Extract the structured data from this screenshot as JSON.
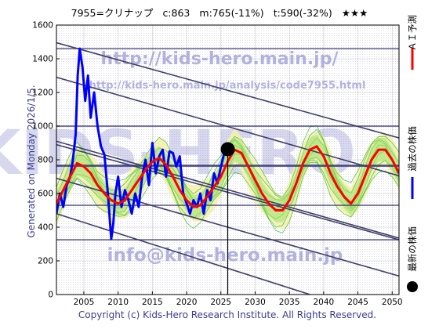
{
  "header": {
    "code_name": "7955=クリナップ",
    "current": "c:863",
    "median": "m:765(-11%)",
    "target": "t:590(-32%)",
    "stars": "★★★"
  },
  "side_note": "Generated on Monday 2026/1/5.",
  "watermarks": {
    "url_main": "http://kids-hero.main.jp/",
    "url_analysis": "http://kids-hero.main.jp/analysis/code7955.html",
    "email": "info@kids-hero.main.jp",
    "logo": "KIDS-HERO"
  },
  "copyright": "Copyright (c) Kids-Hero Research Institute. All Rights Reserved.",
  "legend": [
    {
      "label": "ＡＩ予測",
      "marker": "line",
      "color": "#ff0000"
    },
    {
      "label": "過去の株価",
      "marker": "line",
      "color": "#0000ff"
    },
    {
      "label": "最新の株価",
      "marker": "dot",
      "color": "#000000"
    }
  ],
  "chart_data": {
    "type": "line",
    "xlim": [
      2001,
      2051
    ],
    "ylim": [
      0,
      1600
    ],
    "x_ticks": [
      2005,
      2010,
      2015,
      2020,
      2025,
      2030,
      2035,
      2040,
      2045,
      2050
    ],
    "y_ticks": [
      0,
      200,
      400,
      600,
      800,
      1000,
      1200,
      1400,
      1600
    ],
    "horizontal_lines": [
      325,
      530,
      765,
      1000,
      1460
    ],
    "current_point": {
      "x": 2026.0,
      "y": 863
    },
    "current_marker_x": 2026.0,
    "trend_lines": [
      {
        "from": [
          2001,
          1495
        ],
        "to": [
          2051,
          930
        ]
      },
      {
        "from": [
          2001,
          1290
        ],
        "to": [
          2051,
          705
        ]
      },
      {
        "from": [
          2001,
          910
        ],
        "to": [
          2051,
          335
        ]
      },
      {
        "from": [
          2001,
          890
        ],
        "to": [
          2051,
          325
        ]
      },
      {
        "from": [
          2001,
          690
        ],
        "to": [
          2051,
          110
        ]
      },
      {
        "from": [
          2001,
          480
        ],
        "to": [
          2038,
          0
        ]
      }
    ],
    "series": [
      {
        "name": "過去の株価",
        "color": "#0000ff",
        "x": [
          2001.0,
          2001.5,
          2002.0,
          2002.5,
          2003.0,
          2003.4,
          2003.8,
          2004.1,
          2004.4,
          2004.8,
          2005.2,
          2005.6,
          2006.0,
          2006.5,
          2007.0,
          2007.5,
          2008.0,
          2008.5,
          2009.0,
          2009.3,
          2009.6,
          2010.0,
          2010.5,
          2011.0,
          2011.5,
          2012.0,
          2012.5,
          2013.0,
          2013.5,
          2014.0,
          2014.5,
          2015.0,
          2015.5,
          2016.0,
          2016.5,
          2017.0,
          2017.5,
          2018.0,
          2018.5,
          2019.0,
          2019.5,
          2020.0,
          2020.5,
          2021.0,
          2021.5,
          2022.0,
          2022.5,
          2023.0,
          2023.5,
          2024.0,
          2024.5,
          2025.0,
          2025.5,
          2026.0
        ],
        "y": [
          480,
          600,
          520,
          650,
          700,
          800,
          950,
          1300,
          1460,
          1350,
          1150,
          1300,
          1050,
          1200,
          1000,
          880,
          830,
          600,
          330,
          420,
          600,
          700,
          520,
          620,
          560,
          480,
          600,
          520,
          700,
          800,
          650,
          900,
          720,
          820,
          860,
          700,
          850,
          840,
          760,
          820,
          600,
          540,
          480,
          560,
          520,
          600,
          480,
          620,
          560,
          720,
          660,
          760,
          840,
          863
        ]
      },
      {
        "name": "ＡＩ予測",
        "color": "#ff0000",
        "x": [
          2001.0,
          2002.0,
          2003.0,
          2004.0,
          2005.0,
          2006.0,
          2007.0,
          2008.0,
          2009.0,
          2010.0,
          2011.0,
          2012.0,
          2013.0,
          2014.0,
          2015.0,
          2016.0,
          2017.0,
          2018.0,
          2019.0,
          2020.0,
          2021.0,
          2022.0,
          2023.0,
          2024.0,
          2025.0,
          2026.0,
          2027.0,
          2028.0,
          2029.0,
          2030.0,
          2031.0,
          2032.0,
          2033.0,
          2034.0,
          2035.0,
          2036.0,
          2037.0,
          2038.0,
          2039.0,
          2040.0,
          2041.0,
          2042.0,
          2043.0,
          2044.0,
          2045.0,
          2046.0,
          2047.0,
          2048.0,
          2049.0,
          2050.0,
          2051.0
        ],
        "y": [
          540,
          620,
          700,
          780,
          760,
          720,
          650,
          600,
          560,
          540,
          560,
          620,
          680,
          740,
          790,
          810,
          770,
          700,
          620,
          560,
          520,
          530,
          580,
          640,
          700,
          790,
          860,
          840,
          760,
          680,
          600,
          540,
          500,
          500,
          560,
          660,
          780,
          860,
          880,
          820,
          720,
          640,
          580,
          540,
          600,
          700,
          800,
          860,
          860,
          800,
          720
        ]
      }
    ]
  }
}
